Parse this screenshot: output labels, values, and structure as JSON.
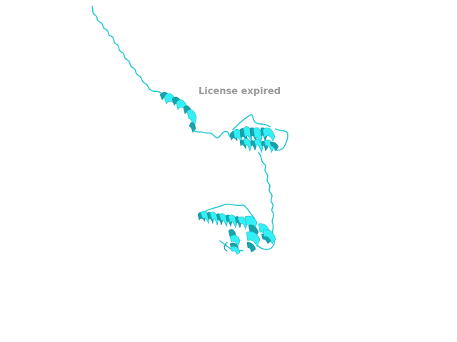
{
  "viewer": {
    "watermark_text": "License expired",
    "background_color": "#ffffff",
    "cartoon_color": "#33f0f5",
    "watermark_color": "#9a9a9a"
  }
}
